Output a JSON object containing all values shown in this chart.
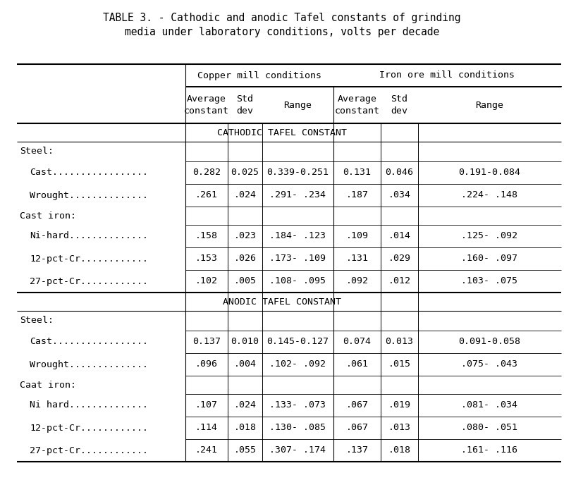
{
  "title_line1": "TABLE 3. - Cathodic and anodic Tafel constants of grinding",
  "title_line2": "media under laboratory conditions, volts per decade",
  "col_group1": "Copper mill conditions",
  "col_group2": "Iron ore mill conditions",
  "section1_header": "CATHODIC TAFEL CONSTANT",
  "section2_header": "ANODIC TAFEL CONSTANT",
  "rows_cathodic": [
    {
      "label": "Steel:",
      "indent": 0,
      "data": [
        "",
        "",
        "",
        "",
        "",
        ""
      ]
    },
    {
      "label": "Cast.................",
      "indent": 1,
      "data": [
        "0.282",
        "0.025",
        "0.339-0.251",
        "0.131",
        "0.046",
        "0.191-0.084"
      ]
    },
    {
      "label": "Wrought..............",
      "indent": 1,
      "data": [
        ".261",
        ".024",
        ".291- .234",
        ".187",
        ".034",
        ".224- .148"
      ]
    },
    {
      "label": "Cast iron:",
      "indent": 0,
      "data": [
        "",
        "",
        "",
        "",
        "",
        ""
      ]
    },
    {
      "label": "Ni-hard..............",
      "indent": 1,
      "data": [
        ".158",
        ".023",
        ".184- .123",
        ".109",
        ".014",
        ".125- .092"
      ]
    },
    {
      "label": "12-pct-Cr............",
      "indent": 1,
      "data": [
        ".153",
        ".026",
        ".173- .109",
        ".131",
        ".029",
        ".160- .097"
      ]
    },
    {
      "label": "27-pct-Cr............",
      "indent": 1,
      "data": [
        ".102",
        ".005",
        ".108- .095",
        ".092",
        ".012",
        ".103- .075"
      ]
    }
  ],
  "rows_anodic": [
    {
      "label": "Steel:",
      "indent": 0,
      "data": [
        "",
        "",
        "",
        "",
        "",
        ""
      ]
    },
    {
      "label": "Cast.................",
      "indent": 1,
      "data": [
        "0.137",
        "0.010",
        "0.145-0.127",
        "0.074",
        "0.013",
        "0.091-0.058"
      ]
    },
    {
      "label": "Wrought..............",
      "indent": 1,
      "data": [
        ".096",
        ".004",
        ".102- .092",
        ".061",
        ".015",
        ".075- .043"
      ]
    },
    {
      "label": "Caat iron:",
      "indent": 0,
      "data": [
        "",
        "",
        "",
        "",
        "",
        ""
      ]
    },
    {
      "label": "Ni hard..............",
      "indent": 1,
      "data": [
        ".107",
        ".024",
        ".133- .073",
        ".067",
        ".019",
        ".081- .034"
      ]
    },
    {
      "label": "12-pct-Cr............",
      "indent": 1,
      "data": [
        ".114",
        ".018",
        ".130- .085",
        ".067",
        ".013",
        ".080- .051"
      ]
    },
    {
      "label": "27-pct-Cr............",
      "indent": 1,
      "data": [
        ".241",
        ".055",
        ".307- .174",
        ".137",
        ".018",
        ".161- .116"
      ]
    }
  ],
  "bg_color": "#ffffff",
  "text_color": "#000000",
  "font_family": "DejaVu Sans Mono",
  "title_fontsize": 10.5,
  "cell_fontsize": 9.5,
  "figw": 8.0,
  "figh": 6.98,
  "dpi": 100
}
